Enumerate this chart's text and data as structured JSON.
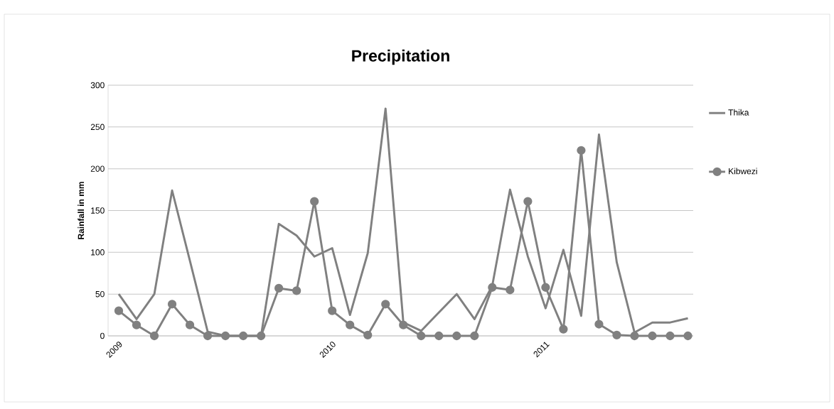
{
  "chart_data": {
    "type": "line",
    "title": "Precipitation",
    "ylabel": "Rainfall in mm",
    "categories": [
      "2009",
      null,
      null,
      null,
      null,
      null,
      null,
      null,
      null,
      null,
      null,
      null,
      "2010",
      null,
      null,
      null,
      null,
      null,
      null,
      null,
      null,
      null,
      null,
      null,
      "2011",
      null,
      null,
      null,
      null,
      null,
      null,
      null,
      null
    ],
    "series": [
      {
        "name": "Thika",
        "color": "#808080",
        "marker": "none",
        "values": [
          50,
          20,
          50,
          174,
          90,
          5,
          0,
          0,
          0,
          134,
          120,
          95,
          105,
          25,
          99,
          272,
          16,
          6,
          28,
          50,
          20,
          60,
          175,
          95,
          33,
          103,
          24,
          241,
          88,
          4,
          16,
          16,
          21
        ]
      },
      {
        "name": "Kibwezi",
        "color": "#808080",
        "marker": "circle",
        "values": [
          30,
          13,
          0,
          38,
          13,
          0,
          0,
          0,
          0,
          57,
          54,
          161,
          30,
          13,
          1,
          38,
          13,
          0,
          0,
          0,
          0,
          58,
          55,
          161,
          58,
          8,
          222,
          14,
          1,
          0,
          0,
          0,
          0
        ]
      }
    ],
    "ylim": [
      0,
      300
    ],
    "yticks": [
      0,
      50,
      100,
      150,
      200,
      250,
      300
    ],
    "grid": "y",
    "legend": "right",
    "line_style": "solid"
  }
}
